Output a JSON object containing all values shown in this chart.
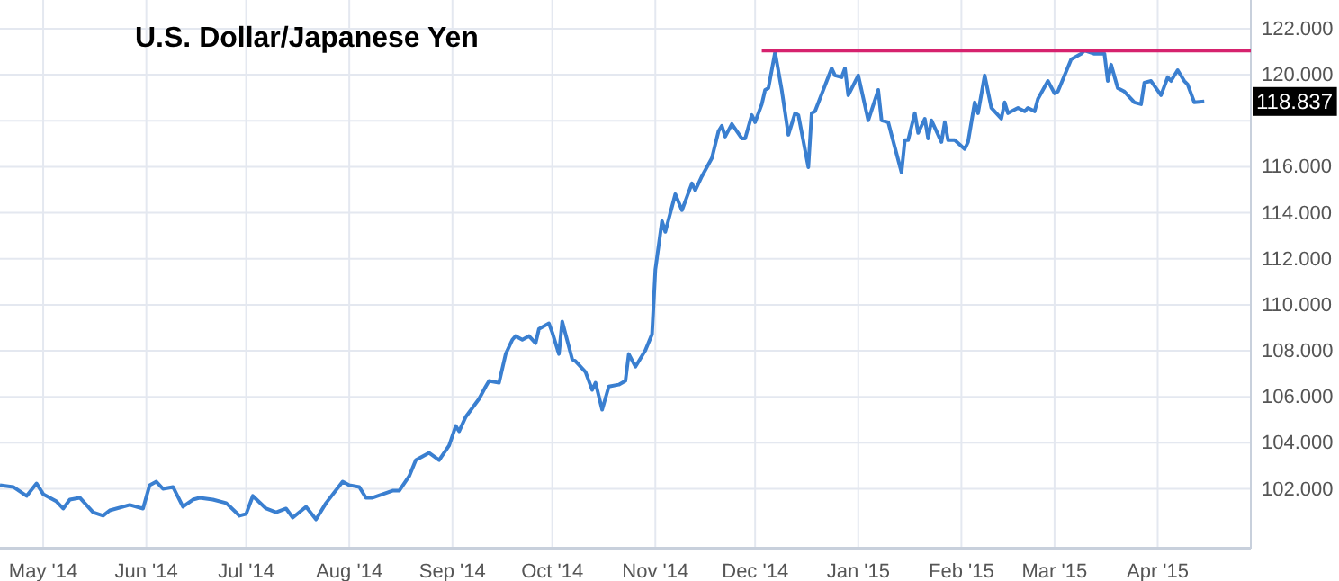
{
  "chart_data": {
    "type": "line",
    "title": "U.S. Dollar/Japanese Yen",
    "xlim": [
      "2014-04-18",
      "2015-04-29"
    ],
    "xticks": [
      {
        "value": "2014-05-01",
        "label": "May '14"
      },
      {
        "value": "2014-06-01",
        "label": "Jun '14"
      },
      {
        "value": "2014-07-01",
        "label": "Jul '14"
      },
      {
        "value": "2014-08-01",
        "label": "Aug '14"
      },
      {
        "value": "2014-09-01",
        "label": "Sep '14"
      },
      {
        "value": "2014-10-01",
        "label": "Oct '14"
      },
      {
        "value": "2014-11-01",
        "label": "Nov '14"
      },
      {
        "value": "2014-12-01",
        "label": "Dec '14"
      },
      {
        "value": "2015-01-01",
        "label": "Jan '15"
      },
      {
        "value": "2015-02-01",
        "label": "Feb '15"
      },
      {
        "value": "2015-03-01",
        "label": "Mar '15"
      },
      {
        "value": "2015-04-01",
        "label": "Apr '15"
      }
    ],
    "ylim": [
      99.4,
      123.25
    ],
    "yticks": [
      {
        "value": 102,
        "label": "102.000"
      },
      {
        "value": 104,
        "label": "104.000"
      },
      {
        "value": 106,
        "label": "106.000"
      },
      {
        "value": 108,
        "label": "108.000"
      },
      {
        "value": 110,
        "label": "110.000"
      },
      {
        "value": 112,
        "label": "112.000"
      },
      {
        "value": 114,
        "label": "114.000"
      },
      {
        "value": 116,
        "label": "116.000"
      },
      {
        "value": 118,
        "label": null
      },
      {
        "value": 120,
        "label": "120.000"
      },
      {
        "value": 122,
        "label": "122.000"
      }
    ],
    "grid": true,
    "marker": "none",
    "line_style": "solid",
    "series": [
      {
        "color": "#3a7fd0",
        "x": [
          "2014-04-18",
          "2014-04-22",
          "2014-04-26",
          "2014-04-29",
          "2014-05-01",
          "2014-05-05",
          "2014-05-07",
          "2014-05-09",
          "2014-05-12",
          "2014-05-16",
          "2014-05-19",
          "2014-05-21",
          "2014-05-27",
          "2014-05-31",
          "2014-06-02",
          "2014-06-04",
          "2014-06-06",
          "2014-06-09",
          "2014-06-12",
          "2014-06-15",
          "2014-06-17",
          "2014-06-21",
          "2014-06-25",
          "2014-06-29",
          "2014-07-01",
          "2014-07-03",
          "2014-07-07",
          "2014-07-10",
          "2014-07-13",
          "2014-07-15",
          "2014-07-19",
          "2014-07-22",
          "2014-07-25",
          "2014-07-30",
          "2014-08-01",
          "2014-08-04",
          "2014-08-06",
          "2014-08-08",
          "2014-08-14",
          "2014-08-16",
          "2014-08-19",
          "2014-08-21",
          "2014-08-25",
          "2014-08-28",
          "2014-08-31",
          "2014-09-02",
          "2014-09-03",
          "2014-09-05",
          "2014-09-07",
          "2014-09-09",
          "2014-09-11",
          "2014-09-12",
          "2014-09-15",
          "2014-09-17",
          "2014-09-19",
          "2014-09-20",
          "2014-09-22",
          "2014-09-24",
          "2014-09-26",
          "2014-09-27",
          "2014-09-30",
          "2014-10-01",
          "2014-10-03",
          "2014-10-04",
          "2014-10-07",
          "2014-10-08",
          "2014-10-11",
          "2014-10-13",
          "2014-10-14",
          "2014-10-16",
          "2014-10-18",
          "2014-10-21",
          "2014-10-23",
          "2014-10-24",
          "2014-10-26",
          "2014-10-29",
          "2014-10-31",
          "2014-11-01",
          "2014-11-03",
          "2014-11-04",
          "2014-11-07",
          "2014-11-09",
          "2014-11-12",
          "2014-11-13",
          "2014-11-15",
          "2014-11-18",
          "2014-11-20",
          "2014-11-21",
          "2014-11-22",
          "2014-11-24",
          "2014-11-27",
          "2014-11-28",
          "2014-11-30",
          "2014-12-01",
          "2014-12-03",
          "2014-12-04",
          "2014-12-05",
          "2014-12-07",
          "2014-12-09",
          "2014-12-11",
          "2014-12-13",
          "2014-12-14",
          "2014-12-17",
          "2014-12-18",
          "2014-12-19",
          "2014-12-24",
          "2014-12-25",
          "2014-12-27",
          "2014-12-28",
          "2014-12-29",
          "2015-01-01",
          "2015-01-04",
          "2015-01-07",
          "2015-01-08",
          "2015-01-10",
          "2015-01-11",
          "2015-01-14",
          "2015-01-15",
          "2015-01-16",
          "2015-01-18",
          "2015-01-19",
          "2015-01-21",
          "2015-01-22",
          "2015-01-23",
          "2015-01-25",
          "2015-01-26",
          "2015-01-27",
          "2015-01-28",
          "2015-01-30",
          "2015-02-02",
          "2015-02-03",
          "2015-02-05",
          "2015-02-06",
          "2015-02-08",
          "2015-02-10",
          "2015-02-13",
          "2015-02-14",
          "2015-02-15",
          "2015-02-18",
          "2015-02-20",
          "2015-02-21",
          "2015-02-23",
          "2015-02-24",
          "2015-02-27",
          "2015-03-01",
          "2015-03-02",
          "2015-03-06",
          "2015-03-09",
          "2015-03-10",
          "2015-03-13",
          "2015-03-16",
          "2015-03-17",
          "2015-03-18",
          "2015-03-20",
          "2015-03-22",
          "2015-03-25",
          "2015-03-27",
          "2015-03-28",
          "2015-03-30",
          "2015-04-02",
          "2015-04-04",
          "2015-04-05",
          "2015-04-07",
          "2015-04-09",
          "2015-04-10",
          "2015-04-12",
          "2015-04-15"
        ],
        "values": [
          102.16,
          102.08,
          101.69,
          102.23,
          101.77,
          101.45,
          101.14,
          101.53,
          101.61,
          100.98,
          100.83,
          101.06,
          101.3,
          101.14,
          102.16,
          102.31,
          102.0,
          102.08,
          101.22,
          101.53,
          101.61,
          101.53,
          101.38,
          100.83,
          100.91,
          101.69,
          101.14,
          100.98,
          101.14,
          100.75,
          101.22,
          100.67,
          101.38,
          102.31,
          102.16,
          102.08,
          101.61,
          101.61,
          101.92,
          101.92,
          102.55,
          103.25,
          103.56,
          103.25,
          103.88,
          104.73,
          104.5,
          105.13,
          105.52,
          105.91,
          106.45,
          106.69,
          106.61,
          107.86,
          108.48,
          108.64,
          108.48,
          108.64,
          108.33,
          108.95,
          109.19,
          108.8,
          107.86,
          109.27,
          107.63,
          107.55,
          107.08,
          106.3,
          106.61,
          105.44,
          106.45,
          106.53,
          106.69,
          107.86,
          107.31,
          108.02,
          108.72,
          111.53,
          113.64,
          113.17,
          114.81,
          114.11,
          115.28,
          114.97,
          115.59,
          116.38,
          117.55,
          117.78,
          117.31,
          117.86,
          117.23,
          117.23,
          118.25,
          117.94,
          118.72,
          119.34,
          119.42,
          120.98,
          119.34,
          117.39,
          118.33,
          118.25,
          115.98,
          118.33,
          118.41,
          120.28,
          119.97,
          119.89,
          120.28,
          119.11,
          119.97,
          118.02,
          119.34,
          118.02,
          117.94,
          117.39,
          115.75,
          117.16,
          117.16,
          118.33,
          117.47,
          118.09,
          117.23,
          118.02,
          117.39,
          117.08,
          117.94,
          117.16,
          117.16,
          116.77,
          117.08,
          118.8,
          118.33,
          119.97,
          118.56,
          118.09,
          118.8,
          118.33,
          118.56,
          118.41,
          118.56,
          118.41,
          118.95,
          119.73,
          119.19,
          119.27,
          120.67,
          120.91,
          121.06,
          120.91,
          120.91,
          119.73,
          120.44,
          119.42,
          119.27,
          118.8,
          118.72,
          119.66,
          119.73,
          119.11,
          119.89,
          119.73,
          120.2,
          119.73,
          119.58,
          118.8,
          118.84
        ]
      },
      {
        "type": "line",
        "color": "#d6226e",
        "x": [
          "2014-12-03",
          "2015-04-29"
        ],
        "values": [
          121.05,
          121.05
        ]
      }
    ],
    "annotations": [
      "118.837"
    ]
  }
}
